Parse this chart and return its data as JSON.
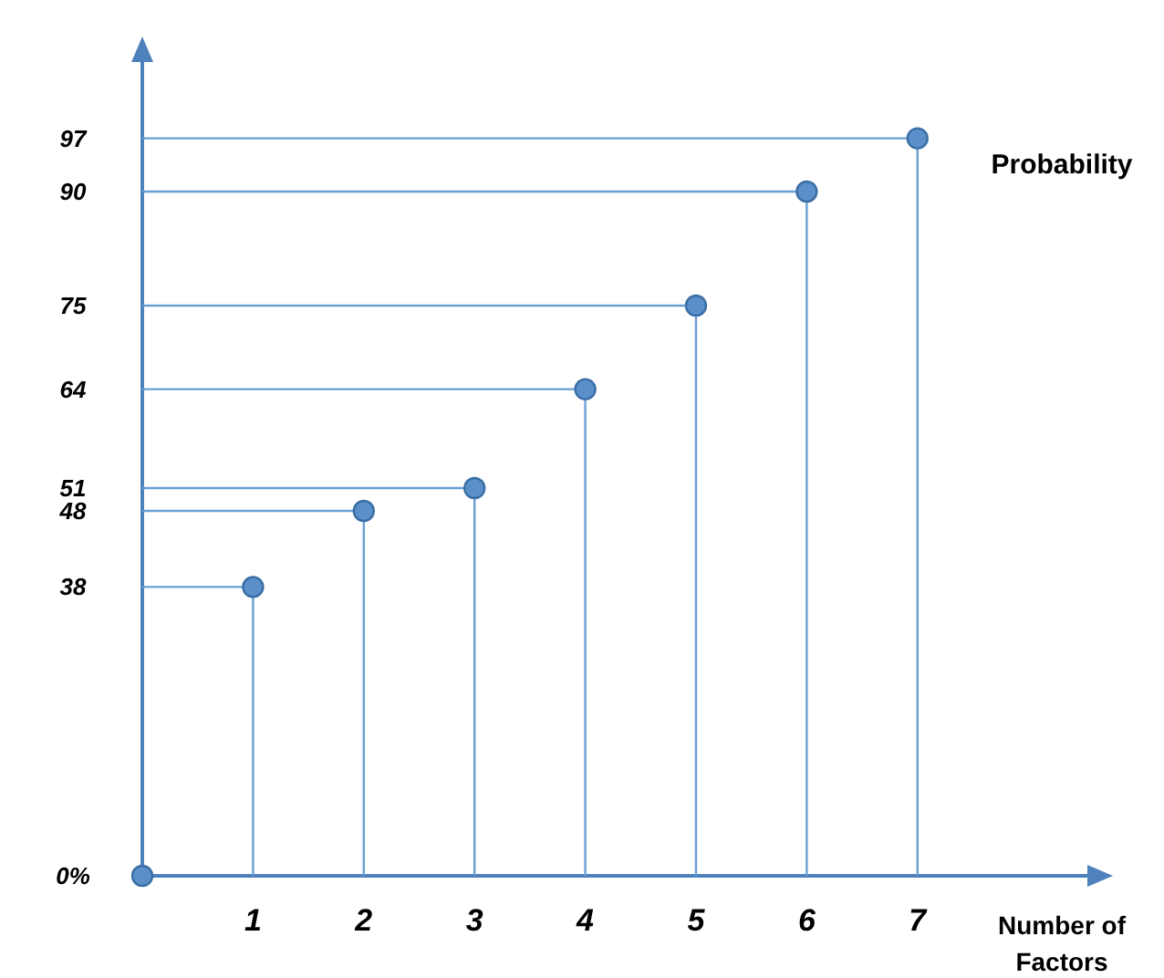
{
  "chart_data": {
    "type": "scatter",
    "xlabel": "Number of Factors",
    "ylabel": "Probability",
    "series": [
      {
        "type": "line",
        "color": "#6a9fd4",
        "marker": "none",
        "x": [
          0,
          1,
          1
        ],
        "values": [
          38,
          38,
          0
        ]
      },
      {
        "type": "line",
        "color": "#6a9fd4",
        "marker": "none",
        "x": [
          0,
          2,
          2
        ],
        "values": [
          48,
          48,
          0
        ]
      },
      {
        "type": "line",
        "color": "#6a9fd4",
        "marker": "none",
        "x": [
          0,
          3,
          3
        ],
        "values": [
          51,
          51,
          0
        ]
      },
      {
        "type": "line",
        "color": "#6a9fd4",
        "marker": "none",
        "x": [
          0,
          4,
          4
        ],
        "values": [
          64,
          64,
          0
        ]
      },
      {
        "type": "line",
        "color": "#6a9fd4",
        "marker": "none",
        "x": [
          0,
          5,
          5
        ],
        "values": [
          75,
          75,
          0
        ]
      },
      {
        "type": "line",
        "color": "#6a9fd4",
        "marker": "none",
        "x": [
          0,
          6,
          6
        ],
        "values": [
          90,
          90,
          0
        ]
      },
      {
        "type": "line",
        "color": "#6a9fd4",
        "marker": "none",
        "x": [
          0,
          7,
          7
        ],
        "values": [
          97,
          97,
          0
        ]
      },
      {
        "color": "#5b8fc9",
        "marker": "circle",
        "x": [
          0,
          1,
          2,
          3,
          4,
          5,
          6,
          7
        ],
        "values": [
          0,
          38,
          48,
          51,
          64,
          75,
          90,
          97
        ]
      }
    ],
    "xlim": [
      0,
      8.6
    ],
    "xticks": [
      1,
      2,
      3,
      4,
      5,
      6,
      7
    ],
    "ylim": [
      0,
      108
    ],
    "yticks": [
      {
        "value": 0,
        "label": "0%"
      },
      38,
      48,
      51,
      64,
      75,
      90,
      97
    ]
  }
}
